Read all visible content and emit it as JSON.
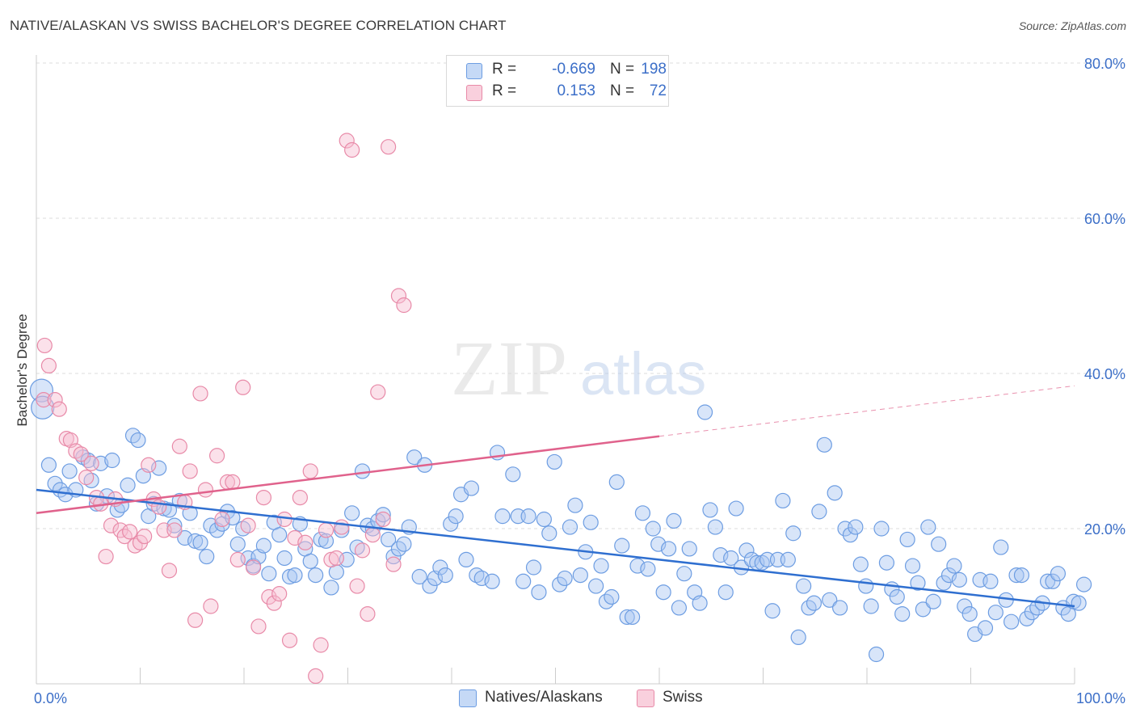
{
  "title": "NATIVE/ALASKAN VS SWISS BACHELOR'S DEGREE CORRELATION CHART",
  "source": "Source: ZipAtlas.com",
  "watermark": {
    "zip": "ZIP",
    "atlas": "atlas"
  },
  "colors": {
    "blue_fill": "#a9c6f2",
    "blue_stroke": "#6d9de2",
    "blue_line": "#2f6fd0",
    "pink_fill": "#f6bdd0",
    "pink_stroke": "#e88aa8",
    "pink_line": "#e0628c",
    "axis_text": "#3c6fc8",
    "grid": "#dddddd"
  },
  "legend": [
    {
      "r_label": "R =",
      "r_value": "-0.669",
      "n_label": "N =",
      "n_value": "198"
    },
    {
      "r_label": "R =",
      "r_value": "0.153",
      "n_label": "N =",
      "n_value": "72"
    }
  ],
  "chart_data": {
    "type": "scatter",
    "ylabel": "Bachelor's Degree",
    "xlim": [
      0,
      100
    ],
    "ylim": [
      0,
      80
    ],
    "x_tick_labels": {
      "left": "0.0%",
      "right": "100.0%"
    },
    "y_ticks": [
      {
        "value": 20,
        "label": "20.0%"
      },
      {
        "value": 40,
        "label": "40.0%"
      },
      {
        "value": 60,
        "label": "60.0%"
      },
      {
        "value": 80,
        "label": "80.0%"
      }
    ],
    "series": [
      {
        "name": "Natives/Alaskans",
        "color": "blue",
        "trend": {
          "x0": 0,
          "y0": 25.0,
          "x1": 100,
          "y1": 10.0
        },
        "points": [
          [
            0.5,
            37.8
          ],
          [
            0.6,
            35.6
          ],
          [
            1.2,
            28.2
          ],
          [
            1.8,
            25.8
          ],
          [
            2.3,
            25.0
          ],
          [
            2.8,
            24.4
          ],
          [
            3.2,
            27.4
          ],
          [
            3.8,
            25.0
          ],
          [
            4.5,
            29.2
          ],
          [
            5.0,
            28.8
          ],
          [
            5.3,
            26.2
          ],
          [
            5.8,
            23.2
          ],
          [
            6.2,
            28.4
          ],
          [
            6.8,
            24.2
          ],
          [
            7.3,
            28.8
          ],
          [
            7.8,
            22.4
          ],
          [
            8.2,
            23.0
          ],
          [
            8.8,
            25.6
          ],
          [
            9.3,
            32.0
          ],
          [
            9.8,
            31.4
          ],
          [
            10.3,
            26.8
          ],
          [
            10.8,
            21.6
          ],
          [
            11.3,
            23.2
          ],
          [
            11.8,
            27.8
          ],
          [
            12.3,
            22.6
          ],
          [
            12.8,
            22.4
          ],
          [
            13.3,
            20.4
          ],
          [
            13.8,
            23.6
          ],
          [
            14.3,
            18.8
          ],
          [
            14.8,
            22.0
          ],
          [
            15.3,
            18.4
          ],
          [
            15.8,
            18.2
          ],
          [
            16.4,
            16.4
          ],
          [
            16.8,
            20.4
          ],
          [
            17.4,
            19.8
          ],
          [
            17.9,
            20.6
          ],
          [
            18.4,
            22.2
          ],
          [
            18.9,
            21.4
          ],
          [
            19.4,
            18.0
          ],
          [
            19.9,
            20.0
          ],
          [
            20.4,
            16.2
          ],
          [
            20.9,
            15.2
          ],
          [
            21.4,
            16.4
          ],
          [
            21.9,
            17.8
          ],
          [
            22.4,
            14.2
          ],
          [
            22.9,
            20.8
          ],
          [
            23.4,
            19.2
          ],
          [
            23.9,
            16.2
          ],
          [
            24.4,
            13.8
          ],
          [
            24.9,
            14.0
          ],
          [
            25.4,
            20.6
          ],
          [
            25.9,
            17.4
          ],
          [
            26.4,
            15.8
          ],
          [
            26.9,
            14.0
          ],
          [
            27.4,
            18.6
          ],
          [
            27.9,
            18.4
          ],
          [
            28.4,
            12.4
          ],
          [
            28.9,
            14.4
          ],
          [
            29.4,
            19.8
          ],
          [
            29.9,
            16.0
          ],
          [
            30.4,
            22.0
          ],
          [
            30.9,
            17.6
          ],
          [
            31.4,
            27.4
          ],
          [
            31.9,
            20.4
          ],
          [
            32.4,
            20.0
          ],
          [
            32.9,
            21.0
          ],
          [
            33.4,
            21.8
          ],
          [
            33.9,
            18.6
          ],
          [
            34.4,
            16.4
          ],
          [
            34.9,
            17.4
          ],
          [
            35.4,
            18.0
          ],
          [
            35.9,
            20.2
          ],
          [
            36.4,
            29.2
          ],
          [
            36.9,
            13.8
          ],
          [
            37.4,
            28.2
          ],
          [
            37.9,
            12.6
          ],
          [
            38.4,
            13.6
          ],
          [
            38.9,
            15.0
          ],
          [
            39.4,
            14.0
          ],
          [
            39.9,
            20.6
          ],
          [
            40.4,
            21.6
          ],
          [
            40.9,
            24.4
          ],
          [
            41.4,
            16.0
          ],
          [
            41.9,
            25.2
          ],
          [
            42.4,
            14.0
          ],
          [
            42.9,
            13.6
          ],
          [
            43.9,
            13.2
          ],
          [
            44.4,
            29.8
          ],
          [
            44.9,
            21.6
          ],
          [
            45.9,
            27.0
          ],
          [
            46.4,
            21.6
          ],
          [
            46.9,
            13.2
          ],
          [
            47.4,
            21.6
          ],
          [
            47.9,
            15.0
          ],
          [
            48.4,
            11.8
          ],
          [
            48.9,
            21.2
          ],
          [
            49.4,
            19.4
          ],
          [
            49.9,
            28.6
          ],
          [
            50.4,
            12.8
          ],
          [
            50.9,
            13.6
          ],
          [
            51.4,
            20.2
          ],
          [
            51.9,
            23.0
          ],
          [
            52.4,
            14.0
          ],
          [
            52.9,
            17.0
          ],
          [
            53.4,
            20.8
          ],
          [
            53.9,
            12.6
          ],
          [
            54.4,
            15.2
          ],
          [
            54.9,
            10.6
          ],
          [
            55.4,
            11.2
          ],
          [
            55.9,
            26.0
          ],
          [
            56.4,
            17.8
          ],
          [
            56.9,
            8.6
          ],
          [
            57.4,
            8.6
          ],
          [
            57.9,
            15.2
          ],
          [
            58.4,
            22.0
          ],
          [
            58.9,
            14.8
          ],
          [
            59.4,
            20.0
          ],
          [
            59.9,
            18.0
          ],
          [
            60.4,
            11.8
          ],
          [
            60.9,
            17.4
          ],
          [
            61.4,
            21.0
          ],
          [
            61.9,
            9.8
          ],
          [
            62.4,
            14.2
          ],
          [
            62.9,
            17.4
          ],
          [
            63.4,
            11.8
          ],
          [
            63.9,
            10.4
          ],
          [
            64.4,
            35.0
          ],
          [
            64.9,
            22.4
          ],
          [
            65.4,
            20.2
          ],
          [
            65.9,
            16.6
          ],
          [
            66.4,
            11.8
          ],
          [
            66.9,
            16.2
          ],
          [
            67.4,
            22.6
          ],
          [
            67.9,
            15.0
          ],
          [
            68.4,
            17.2
          ],
          [
            68.9,
            16.0
          ],
          [
            69.4,
            15.6
          ],
          [
            69.9,
            15.6
          ],
          [
            70.4,
            16.0
          ],
          [
            70.9,
            9.4
          ],
          [
            71.4,
            16.0
          ],
          [
            71.9,
            23.6
          ],
          [
            72.4,
            16.0
          ],
          [
            72.9,
            19.4
          ],
          [
            73.4,
            6.0
          ],
          [
            73.9,
            12.6
          ],
          [
            74.4,
            9.8
          ],
          [
            74.9,
            10.4
          ],
          [
            75.4,
            22.2
          ],
          [
            75.9,
            30.8
          ],
          [
            76.4,
            10.8
          ],
          [
            76.9,
            24.6
          ],
          [
            77.4,
            9.8
          ],
          [
            77.9,
            20.0
          ],
          [
            78.4,
            19.2
          ],
          [
            78.9,
            20.2
          ],
          [
            79.4,
            15.4
          ],
          [
            79.9,
            12.6
          ],
          [
            80.4,
            10.0
          ],
          [
            80.9,
            3.8
          ],
          [
            81.4,
            20.0
          ],
          [
            81.9,
            15.6
          ],
          [
            82.4,
            12.2
          ],
          [
            82.9,
            11.2
          ],
          [
            83.4,
            9.0
          ],
          [
            83.9,
            18.6
          ],
          [
            84.4,
            15.2
          ],
          [
            84.9,
            13.0
          ],
          [
            85.4,
            9.6
          ],
          [
            85.9,
            20.2
          ],
          [
            86.4,
            10.6
          ],
          [
            86.9,
            18.0
          ],
          [
            87.4,
            13.0
          ],
          [
            87.9,
            14.0
          ],
          [
            88.4,
            15.2
          ],
          [
            88.9,
            13.4
          ],
          [
            89.4,
            10.0
          ],
          [
            89.9,
            9.0
          ],
          [
            90.4,
            6.4
          ],
          [
            90.9,
            13.4
          ],
          [
            91.4,
            7.2
          ],
          [
            91.9,
            13.2
          ],
          [
            92.4,
            9.2
          ],
          [
            92.9,
            17.6
          ],
          [
            93.4,
            10.8
          ],
          [
            93.9,
            8.0
          ],
          [
            94.4,
            14.0
          ],
          [
            94.9,
            14.0
          ],
          [
            95.4,
            8.4
          ],
          [
            95.9,
            9.2
          ],
          [
            96.4,
            9.8
          ],
          [
            96.9,
            10.4
          ],
          [
            97.4,
            13.2
          ],
          [
            97.9,
            13.2
          ],
          [
            98.4,
            14.2
          ],
          [
            98.9,
            9.8
          ],
          [
            99.4,
            9.0
          ],
          [
            99.9,
            10.6
          ],
          [
            100.4,
            10.4
          ],
          [
            100.9,
            12.8
          ]
        ]
      },
      {
        "name": "Swiss",
        "color": "pink",
        "trend": {
          "x0": 0,
          "y0": 22.0,
          "x1": 60,
          "y1": 31.9,
          "dash_x1": 100,
          "dash_y1": 38.4
        },
        "points": [
          [
            0.7,
            36.6
          ],
          [
            0.8,
            43.6
          ],
          [
            1.2,
            41.0
          ],
          [
            1.8,
            36.6
          ],
          [
            2.2,
            35.4
          ],
          [
            2.9,
            31.6
          ],
          [
            3.3,
            31.4
          ],
          [
            3.8,
            30.0
          ],
          [
            4.3,
            29.6
          ],
          [
            4.8,
            26.6
          ],
          [
            5.3,
            28.4
          ],
          [
            5.8,
            24.0
          ],
          [
            6.2,
            23.2
          ],
          [
            6.7,
            16.4
          ],
          [
            7.2,
            20.4
          ],
          [
            7.6,
            23.8
          ],
          [
            8.1,
            19.8
          ],
          [
            8.5,
            19.0
          ],
          [
            9.0,
            19.6
          ],
          [
            9.5,
            17.8
          ],
          [
            10.0,
            18.2
          ],
          [
            10.4,
            19.0
          ],
          [
            10.8,
            28.2
          ],
          [
            11.3,
            23.8
          ],
          [
            11.8,
            22.8
          ],
          [
            12.3,
            19.8
          ],
          [
            12.8,
            14.6
          ],
          [
            13.3,
            19.8
          ],
          [
            13.8,
            30.6
          ],
          [
            14.3,
            23.4
          ],
          [
            14.8,
            27.4
          ],
          [
            15.3,
            8.2
          ],
          [
            15.8,
            37.4
          ],
          [
            16.3,
            25.0
          ],
          [
            16.8,
            10.0
          ],
          [
            17.4,
            29.4
          ],
          [
            17.9,
            21.2
          ],
          [
            18.4,
            26.0
          ],
          [
            18.9,
            26.0
          ],
          [
            19.4,
            16.0
          ],
          [
            19.9,
            38.2
          ],
          [
            20.4,
            20.4
          ],
          [
            20.9,
            15.0
          ],
          [
            21.4,
            7.4
          ],
          [
            21.9,
            24.0
          ],
          [
            22.4,
            11.2
          ],
          [
            22.9,
            10.4
          ],
          [
            23.4,
            11.6
          ],
          [
            23.9,
            21.2
          ],
          [
            24.4,
            5.6
          ],
          [
            24.9,
            18.8
          ],
          [
            25.4,
            24.0
          ],
          [
            25.9,
            18.2
          ],
          [
            26.4,
            27.4
          ],
          [
            26.9,
            1.0
          ],
          [
            27.4,
            5.0
          ],
          [
            27.9,
            19.8
          ],
          [
            28.4,
            16.0
          ],
          [
            28.9,
            16.2
          ],
          [
            29.4,
            20.2
          ],
          [
            29.9,
            70.0
          ],
          [
            30.4,
            68.8
          ],
          [
            30.9,
            12.6
          ],
          [
            31.4,
            17.2
          ],
          [
            31.9,
            9.0
          ],
          [
            32.4,
            19.2
          ],
          [
            32.9,
            37.6
          ],
          [
            33.4,
            21.2
          ],
          [
            33.9,
            69.2
          ],
          [
            34.4,
            15.4
          ],
          [
            34.9,
            50.0
          ],
          [
            35.4,
            48.8
          ]
        ]
      }
    ],
    "legend_placement": "bottom-center"
  }
}
